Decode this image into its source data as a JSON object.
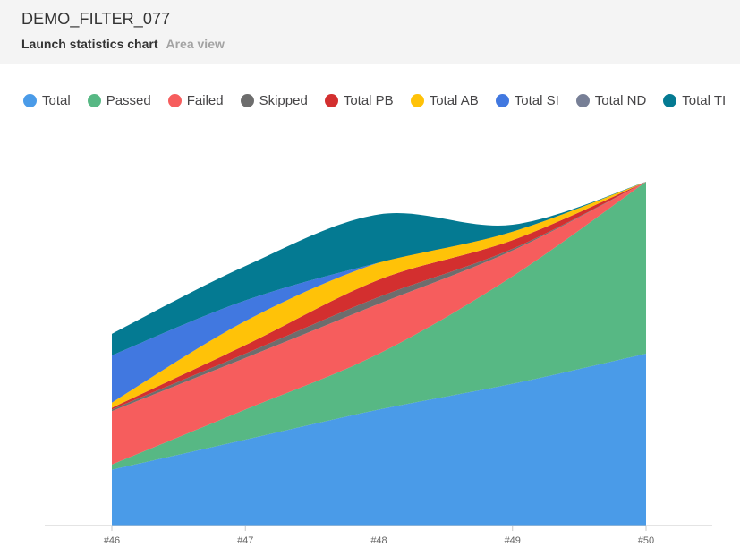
{
  "widget": {
    "title": "DEMO_FILTER_077",
    "subtitle": "Launch statistics chart",
    "view_label": "Area view"
  },
  "legend": [
    {
      "label": "Total",
      "color": "#4a9be8"
    },
    {
      "label": "Passed",
      "color": "#57b884"
    },
    {
      "label": "Failed",
      "color": "#f65d5d"
    },
    {
      "label": "Skipped",
      "color": "#6d6d6d"
    },
    {
      "label": "Total PB",
      "color": "#d32f2f"
    },
    {
      "label": "Total AB",
      "color": "#ffc208"
    },
    {
      "label": "Total SI",
      "color": "#4178e0"
    },
    {
      "label": "Total ND",
      "color": "#777f96"
    },
    {
      "label": "Total TI",
      "color": "#047a92"
    }
  ],
  "chart_data": {
    "type": "area",
    "stacked": true,
    "categories": [
      "#46",
      "#47",
      "#48",
      "#49",
      "#50"
    ],
    "ylim": [
      0,
      400
    ],
    "series": [
      {
        "name": "Total",
        "color": "#4a9be8",
        "values": [
          65,
          100,
          135,
          165,
          200
        ]
      },
      {
        "name": "Passed",
        "color": "#57b884",
        "values": [
          6,
          35,
          65,
          125,
          200
        ]
      },
      {
        "name": "Failed",
        "color": "#f65d5d",
        "values": [
          62,
          60,
          58,
          30,
          0
        ]
      },
      {
        "name": "Skipped",
        "color": "#6d6d6d",
        "values": [
          2,
          5,
          8,
          2,
          0
        ]
      },
      {
        "name": "Total PB",
        "color": "#d32f2f",
        "values": [
          2,
          10,
          20,
          10,
          0
        ]
      },
      {
        "name": "Total AB",
        "color": "#ffc208",
        "values": [
          6,
          28,
          20,
          10,
          0
        ]
      },
      {
        "name": "Total SI",
        "color": "#4178e0",
        "values": [
          55,
          24,
          0,
          0,
          0
        ]
      },
      {
        "name": "Total ND",
        "color": "#777f96",
        "values": [
          0,
          0,
          0,
          0,
          0
        ]
      },
      {
        "name": "Total TI",
        "color": "#047a92",
        "values": [
          25,
          40,
          56,
          8,
          0
        ]
      }
    ]
  }
}
